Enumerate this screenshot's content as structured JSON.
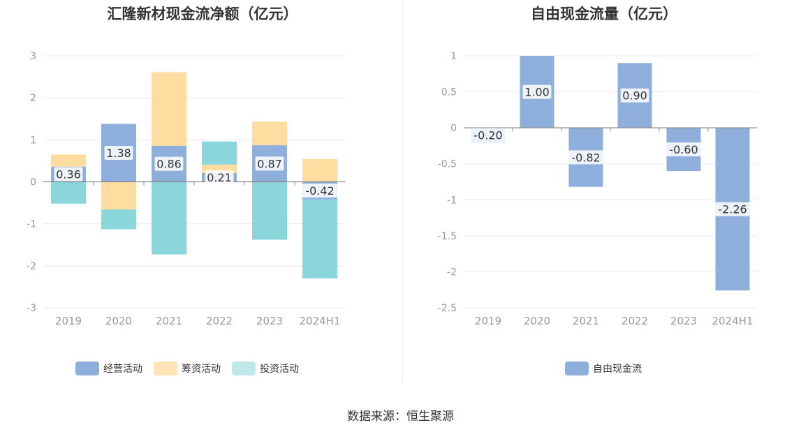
{
  "source_label": "数据来源：恒生聚源",
  "colors": {
    "operating": "#8eaedc",
    "financing": "#ffdc9f",
    "investing": "#8ad6da",
    "free_cash_flow": "#8eaedc",
    "axis": "#999999",
    "grid": "#e6e8f0",
    "label_bg": "#ffffff"
  },
  "chart_data": [
    {
      "type": "bar",
      "stacked": true,
      "title": "汇隆新材现金流净额（亿元）",
      "categories": [
        "2019",
        "2020",
        "2021",
        "2022",
        "2023",
        "2024H1"
      ],
      "ylim": [
        -3,
        3
      ],
      "yticks": [
        3,
        2,
        1,
        0,
        -1,
        -2,
        -3
      ],
      "grid": true,
      "legend_position": "bottom",
      "series": [
        {
          "name": "经营活动",
          "key": "operating",
          "values": [
            0.36,
            1.38,
            0.86,
            0.21,
            0.87,
            -0.42
          ],
          "show_labels": true
        },
        {
          "name": "筹资活动",
          "key": "financing",
          "values": [
            0.29,
            -0.66,
            1.75,
            0.2,
            0.56,
            0.54
          ],
          "show_labels": false
        },
        {
          "name": "投资活动",
          "key": "investing",
          "values": [
            -0.52,
            -0.47,
            -1.73,
            0.55,
            -1.38,
            -1.88
          ],
          "show_labels": false
        }
      ],
      "data_labels": [
        "0.36",
        "1.38",
        "0.86",
        "0.21",
        "0.87",
        "-0.42"
      ]
    },
    {
      "type": "bar",
      "title": "自由现金流量（亿元）",
      "categories": [
        "2019",
        "2020",
        "2021",
        "2022",
        "2023",
        "2024H1"
      ],
      "ylim": [
        -2.5,
        1
      ],
      "yticks": [
        1,
        0.5,
        0,
        -0.5,
        -1,
        -1.5,
        -2,
        -2.5
      ],
      "grid": true,
      "legend_position": "bottom",
      "series": [
        {
          "name": "自由现金流",
          "key": "free_cash_flow",
          "values": [
            -0.2,
            1.0,
            -0.82,
            0.9,
            -0.6,
            -2.26
          ],
          "show_labels": true
        }
      ],
      "data_labels": [
        "-0.20",
        "1.00",
        "-0.82",
        "0.90",
        "-0.60",
        "-2.26"
      ]
    }
  ]
}
